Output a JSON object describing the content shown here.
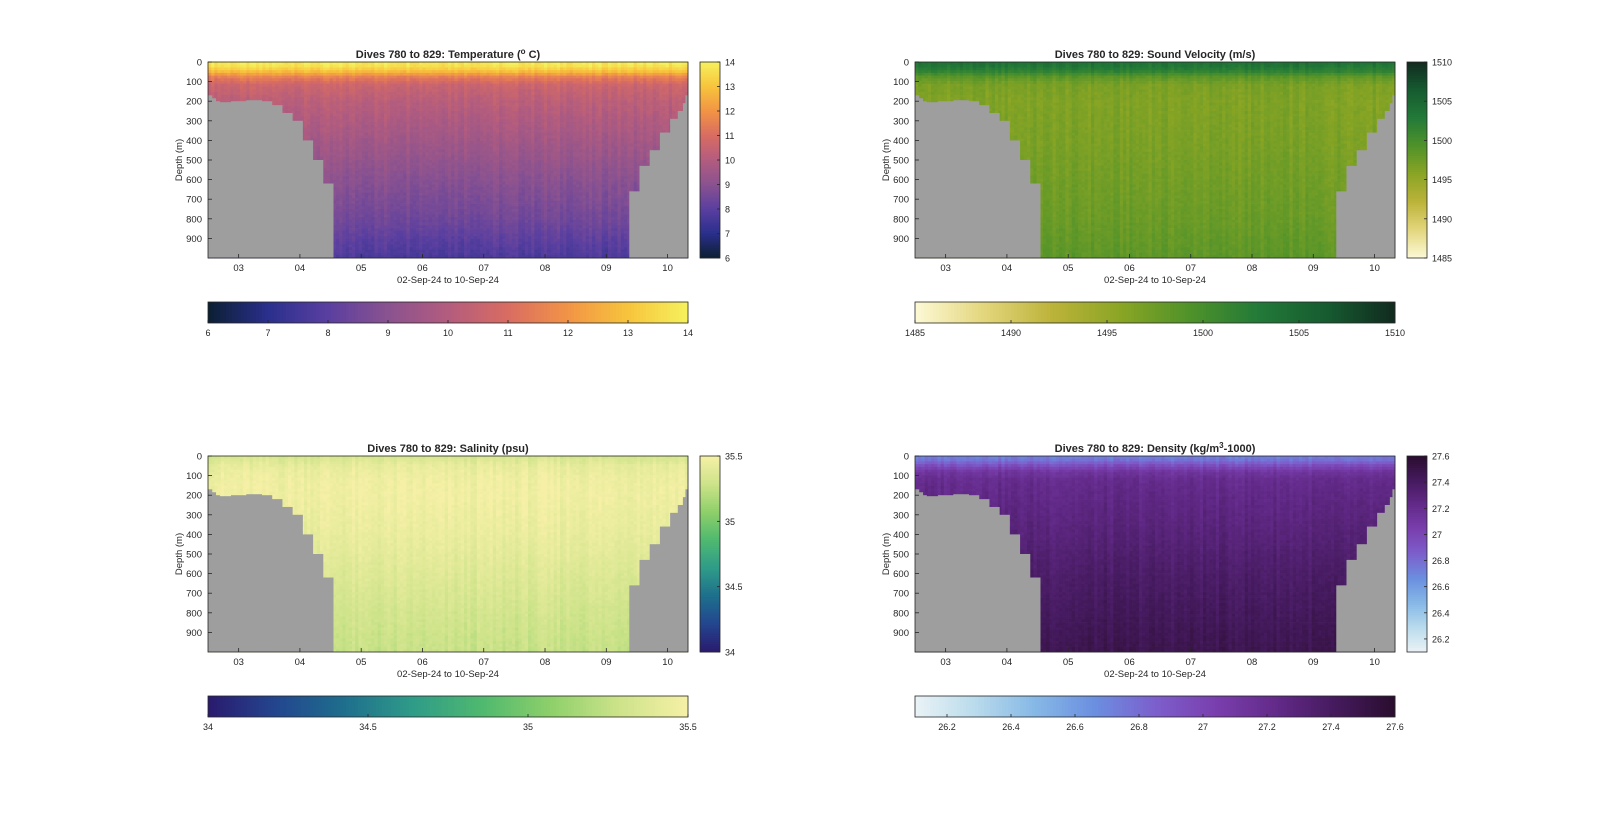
{
  "figure": {
    "background": "#ffffff",
    "axis_color": "#262626",
    "bathymetry_color": "#9e9e9e"
  },
  "chart_data": [
    {
      "type": "heatmap",
      "id": "temperature",
      "title_prefix": "Dives 780 to 829: Temperature (",
      "title_sup": "o",
      "title_suffix": " C)",
      "xlabel": "02-Sep-24 to 10-Sep-24",
      "ylabel": "Depth (m)",
      "xlim": [
        "2024-09-02T12:00",
        "2024-09-10T08:00"
      ],
      "x_ticks": [
        "03",
        "04",
        "05",
        "06",
        "07",
        "08",
        "09",
        "10"
      ],
      "ylim": [
        0,
        1000
      ],
      "y_reversed": true,
      "y_ticks": [
        0,
        100,
        200,
        300,
        400,
        500,
        600,
        700,
        800,
        900
      ],
      "clim": [
        6,
        14
      ],
      "colorbar_ticks": [
        6,
        7,
        8,
        9,
        10,
        11,
        12,
        13,
        14
      ],
      "colorbar_tick_labels": [
        "6",
        "7",
        "8",
        "9",
        "10",
        "11",
        "12",
        "13",
        "14"
      ],
      "colormap": [
        "#0b1f33",
        "#2a2f8c",
        "#5a3fa0",
        "#8a5290",
        "#b35c7e",
        "#d96c62",
        "#f29446",
        "#f7c43c",
        "#f6f15e"
      ],
      "profile": {
        "depth": [
          0,
          25,
          50,
          80,
          120,
          200,
          400,
          600,
          800,
          1000
        ],
        "value": [
          13.9,
          13.6,
          12.8,
          11.4,
          10.6,
          10.2,
          9.6,
          9.0,
          8.5,
          7.7
        ]
      },
      "colorbars": [
        "vertical",
        "horizontal"
      ]
    },
    {
      "type": "heatmap",
      "id": "sound_velocity",
      "title_prefix": "Dives 780 to 829: Sound Velocity (m/s)",
      "title_sup": "",
      "title_suffix": "",
      "xlabel": "02-Sep-24 to 10-Sep-24",
      "ylabel": "Depth (m)",
      "xlim": [
        "2024-09-02T12:00",
        "2024-09-10T08:00"
      ],
      "x_ticks": [
        "03",
        "04",
        "05",
        "06",
        "07",
        "08",
        "09",
        "10"
      ],
      "ylim": [
        0,
        1000
      ],
      "y_reversed": true,
      "y_ticks": [
        0,
        100,
        200,
        300,
        400,
        500,
        600,
        700,
        800,
        900
      ],
      "clim": [
        1485,
        1510
      ],
      "colorbar_ticks": [
        1485,
        1490,
        1495,
        1500,
        1505,
        1510
      ],
      "colorbar_tick_labels": [
        "1485",
        "1490",
        "1495",
        "1500",
        "1505",
        "1510"
      ],
      "colormap": [
        "#fdf9d6",
        "#e3d67d",
        "#bcb33a",
        "#8aa524",
        "#4f922a",
        "#237a38",
        "#165b30",
        "#112a1f"
      ],
      "profile": {
        "depth": [
          0,
          25,
          50,
          80,
          120,
          200,
          400,
          600,
          800,
          1000
        ],
        "value": [
          1503.8,
          1503.2,
          1501.5,
          1498.2,
          1496.6,
          1496.3,
          1496.6,
          1497.1,
          1497.6,
          1498.4
        ]
      },
      "colorbars": [
        "vertical",
        "horizontal"
      ]
    },
    {
      "type": "heatmap",
      "id": "salinity",
      "title_prefix": "Dives 780 to 829: Salinity (psu)",
      "title_sup": "",
      "title_suffix": "",
      "xlabel": "02-Sep-24 to 10-Sep-24",
      "ylabel": "Depth (m)",
      "xlim": [
        "2024-09-02T12:00",
        "2024-09-10T08:00"
      ],
      "x_ticks": [
        "03",
        "04",
        "05",
        "06",
        "07",
        "08",
        "09",
        "10"
      ],
      "ylim": [
        0,
        1000
      ],
      "y_reversed": true,
      "y_ticks": [
        0,
        100,
        200,
        300,
        400,
        500,
        600,
        700,
        800,
        900
      ],
      "clim": [
        34,
        35.5
      ],
      "colorbar_ticks": [
        34,
        34.5,
        35,
        35.5
      ],
      "colorbar_tick_labels": [
        "34",
        "34.5",
        "35",
        "35.5"
      ],
      "colormap": [
        "#2a1a6e",
        "#23468f",
        "#1e6f8d",
        "#2f9c88",
        "#4fb96f",
        "#8ed06a",
        "#cde38a",
        "#f6f0a6"
      ],
      "profile": {
        "depth": [
          0,
          25,
          50,
          80,
          120,
          200,
          400,
          600,
          800,
          1000
        ],
        "value": [
          35.33,
          35.37,
          35.42,
          35.44,
          35.46,
          35.47,
          35.43,
          35.37,
          35.31,
          35.26
        ]
      },
      "colorbars": [
        "vertical",
        "horizontal"
      ]
    },
    {
      "type": "heatmap",
      "id": "density",
      "title_prefix": "Dives 780 to 829: Density (kg/m",
      "title_sup": "3",
      "title_suffix": "-1000)",
      "xlabel": "02-Sep-24 to 10-Sep-24",
      "ylabel": "Depth (m)",
      "xlim": [
        "2024-09-02T12:00",
        "2024-09-10T08:00"
      ],
      "x_ticks": [
        "03",
        "04",
        "05",
        "06",
        "07",
        "08",
        "09",
        "10"
      ],
      "ylim": [
        0,
        1000
      ],
      "y_reversed": true,
      "y_ticks": [
        0,
        100,
        200,
        300,
        400,
        500,
        600,
        700,
        800,
        900
      ],
      "clim": [
        26.1,
        27.6
      ],
      "colorbar_ticks": [
        26.2,
        26.4,
        26.6,
        26.8,
        27,
        27.2,
        27.4,
        27.6
      ],
      "colorbar_tick_labels": [
        "26.2",
        "26.4",
        "26.6",
        "26.8",
        "27",
        "27.2",
        "27.4",
        "27.6"
      ],
      "colormap": [
        "#eaf3f6",
        "#b9dbec",
        "#86b8e6",
        "#6b8fe0",
        "#7c5fcc",
        "#7a3fae",
        "#632a8a",
        "#451a5e",
        "#2a0d2e"
      ],
      "profile": {
        "depth": [
          0,
          25,
          50,
          80,
          120,
          200,
          400,
          600,
          800,
          1000
        ],
        "value": [
          26.72,
          26.78,
          26.95,
          27.12,
          27.2,
          27.24,
          27.3,
          27.37,
          27.42,
          27.47
        ]
      },
      "colorbars": [
        "vertical",
        "horizontal"
      ]
    }
  ],
  "bathymetry": {
    "units": "m",
    "left_wall": [
      {
        "start": "2024-09-02T12:00",
        "depth": 170
      },
      {
        "start": "2024-09-02T13:30",
        "depth": 185
      },
      {
        "start": "2024-09-02T15:00",
        "depth": 200
      },
      {
        "start": "2024-09-02T16:30",
        "depth": 205
      },
      {
        "start": "2024-09-02T21:00",
        "depth": 200
      },
      {
        "start": "2024-09-03T03:00",
        "depth": 195
      },
      {
        "start": "2024-09-03T09:00",
        "depth": 200
      },
      {
        "start": "2024-09-03T13:00",
        "depth": 220
      },
      {
        "start": "2024-09-03T17:00",
        "depth": 260
      },
      {
        "start": "2024-09-03T21:00",
        "depth": 300
      },
      {
        "start": "2024-09-04T01:00",
        "depth": 400
      },
      {
        "start": "2024-09-04T05:00",
        "depth": 500
      },
      {
        "start": "2024-09-04T09:00",
        "depth": 620
      },
      {
        "start": "2024-09-04T13:00",
        "depth": 1000
      },
      {
        "start": "2024-09-04T16:00",
        "depth": null
      }
    ],
    "right_wall": [
      {
        "start": "2024-09-09T07:00",
        "depth": 1000
      },
      {
        "start": "2024-09-09T09:00",
        "depth": 660
      },
      {
        "start": "2024-09-09T13:00",
        "depth": 530
      },
      {
        "start": "2024-09-09T17:00",
        "depth": 450
      },
      {
        "start": "2024-09-09T21:00",
        "depth": 360
      },
      {
        "start": "2024-09-10T01:00",
        "depth": 290
      },
      {
        "start": "2024-09-10T04:00",
        "depth": 250
      },
      {
        "start": "2024-09-10T06:00",
        "depth": 210
      },
      {
        "start": "2024-09-10T07:00",
        "depth": 170
      },
      {
        "start": "2024-09-10T08:00",
        "depth": null
      }
    ]
  }
}
